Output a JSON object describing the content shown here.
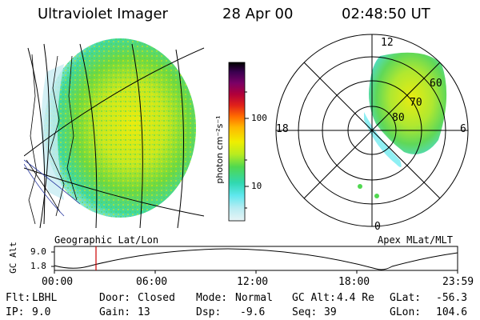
{
  "header": {
    "instrument": "Ultraviolet Imager",
    "date": "28 Apr 00",
    "time": "02:48:50 UT"
  },
  "colorbar": {
    "unit_label": "photon cm⁻²s⁻¹",
    "tick_labels": [
      "100",
      "10"
    ],
    "colors": [
      "#000000",
      "#3a0050",
      "#7a0066",
      "#b0003a",
      "#e0201a",
      "#ff6a00",
      "#ffb800",
      "#f0ee00",
      "#b8ec20",
      "#50d850",
      "#30d8b0",
      "#60e8ee",
      "#b8ecf2",
      "#e8f4f6"
    ]
  },
  "left_panel": {
    "label": "Geographic Lat/Lon"
  },
  "right_panel": {
    "label": "Apex MLat/MLT",
    "mlt_labels": [
      "12",
      "18",
      "6",
      "0"
    ],
    "lat_labels": [
      "60",
      "70",
      "80"
    ]
  },
  "timeline": {
    "axis_label": "GC Alt",
    "y_ticks": [
      "9.0",
      "1.8"
    ],
    "x_ticks": [
      "00:00",
      "06:00",
      "12:00",
      "18:00",
      "23:59"
    ],
    "marker_color": "#cc0000"
  },
  "status": {
    "flt_label": "Flt:",
    "flt_value": "LBHL",
    "ip_label": "IP:",
    "ip_value": "9.0",
    "door_label": "Door:",
    "door_value": "Closed",
    "gain_label": "Gain:",
    "gain_value": "13",
    "mode_label": "Mode:",
    "mode_value": "Normal",
    "dsp_label": "Dsp:",
    "dsp_value": "-9.6",
    "gcalt_label": "GC Alt:",
    "gcalt_value": "4.4 Re",
    "seq_label": "Seq:",
    "seq_value": "39",
    "glat_label": "GLat:",
    "glat_value": "-56.3",
    "glon_label": "GLon:",
    "glon_value": "104.6"
  }
}
